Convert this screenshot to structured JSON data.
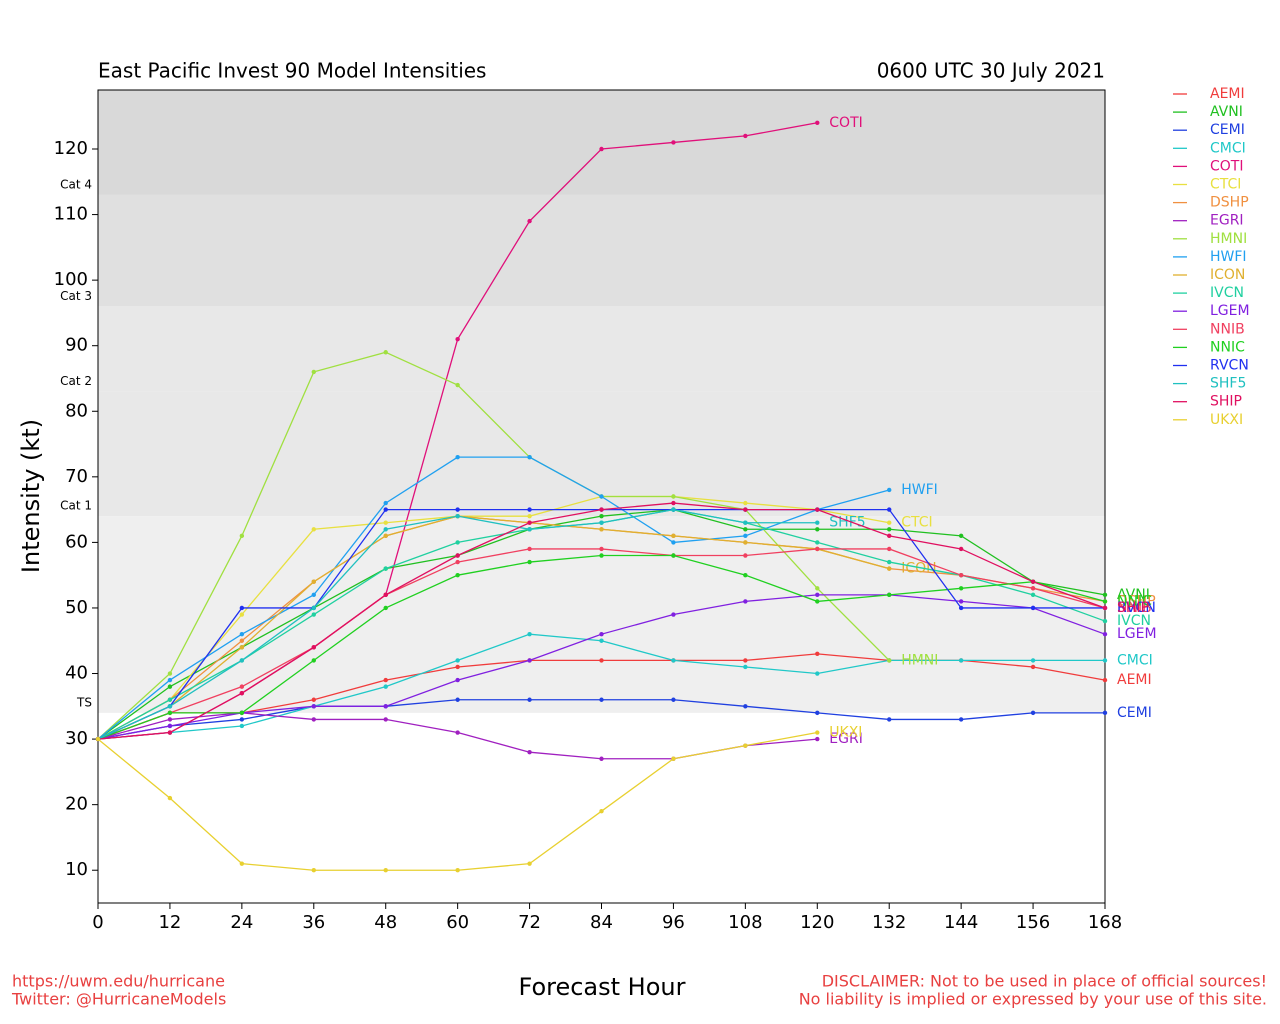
{
  "chart_data": {
    "type": "line",
    "title": "East Pacific Invest 90 Model Intensities",
    "subtitle": "0600 UTC 30 July 2021",
    "x_label": "Forecast Hour",
    "y_label": "Intensity (kt)",
    "footer_left": [
      "https://uwm.edu/hurricane",
      "Twitter: @HurricaneModels"
    ],
    "footer_right": [
      "DISCLAIMER: Not to be used in place of official sources!",
      "No liability is implied or expressed by your use of this site."
    ],
    "xlim": [
      0,
      168
    ],
    "ylim": [
      5,
      129
    ],
    "xticks": [
      0,
      12,
      24,
      36,
      48,
      60,
      72,
      84,
      96,
      108,
      120,
      132,
      144,
      156,
      168
    ],
    "yticks": [
      10,
      20,
      30,
      40,
      50,
      60,
      70,
      80,
      90,
      100,
      110,
      120
    ],
    "intensity_bands": [
      {
        "value": 34,
        "label": "TS",
        "color": "#efefef"
      },
      {
        "value": 64,
        "label": "Cat 1",
        "color": "#e8e8e8"
      },
      {
        "value": 83,
        "label": "Cat 2",
        "color": "#e8e8e8"
      },
      {
        "value": 96,
        "label": "Cat 3",
        "color": "#e0e0e0"
      },
      {
        "value": 113,
        "label": "Cat 4",
        "color": "#d9d9d9"
      }
    ],
    "x": [
      0,
      12,
      24,
      36,
      48,
      60,
      72,
      84,
      96,
      108,
      120,
      132,
      144,
      156,
      168
    ],
    "series": [
      {
        "name": "AEMI",
        "color": "#f03c3c",
        "values": [
          30,
          34,
          34,
          36,
          39,
          41,
          42,
          42,
          42,
          42,
          43,
          42,
          42,
          41,
          39
        ]
      },
      {
        "name": "AVNI",
        "color": "#20c020",
        "values": [
          30,
          38,
          44,
          50,
          56,
          58,
          62,
          64,
          65,
          62,
          62,
          62,
          61,
          54,
          52
        ]
      },
      {
        "name": "CEMI",
        "color": "#2040e0",
        "values": [
          30,
          32,
          33,
          35,
          35,
          36,
          36,
          36,
          36,
          35,
          34,
          33,
          33,
          34,
          34
        ]
      },
      {
        "name": "CMCI",
        "color": "#20c8c8",
        "values": [
          30,
          31,
          32,
          35,
          38,
          42,
          46,
          45,
          42,
          41,
          40,
          42,
          42,
          42,
          42
        ]
      },
      {
        "name": "COTI",
        "color": "#e0107a",
        "values": [
          30,
          31,
          37,
          44,
          52,
          91,
          109,
          120,
          121,
          122,
          124,
          null,
          null,
          null,
          null
        ]
      },
      {
        "name": "CTCI",
        "color": "#e8e040",
        "values": [
          30,
          36,
          49,
          62,
          63,
          64,
          64,
          67,
          67,
          66,
          65,
          63,
          null,
          null,
          null
        ]
      },
      {
        "name": "DSHP",
        "color": "#f09040",
        "values": [
          30,
          36,
          45,
          54,
          61,
          64,
          63,
          62,
          61,
          60,
          59,
          56,
          55,
          53,
          51
        ]
      },
      {
        "name": "EGRI",
        "color": "#a020c0",
        "values": [
          30,
          33,
          34,
          33,
          33,
          31,
          28,
          27,
          27,
          29,
          30,
          null,
          null,
          null,
          null
        ]
      },
      {
        "name": "HMNI",
        "color": "#a0e040",
        "values": [
          30,
          40,
          61,
          86,
          89,
          84,
          73,
          67,
          67,
          65,
          53,
          42,
          null,
          null,
          null
        ]
      },
      {
        "name": "HWFI",
        "color": "#20a0f0",
        "values": [
          30,
          39,
          46,
          52,
          66,
          73,
          73,
          67,
          60,
          61,
          65,
          68,
          null,
          null,
          null
        ]
      },
      {
        "name": "ICON",
        "color": "#e0b030",
        "values": [
          30,
          35,
          44,
          54,
          61,
          64,
          63,
          62,
          61,
          60,
          59,
          56,
          null,
          null,
          null
        ]
      },
      {
        "name": "IVCN",
        "color": "#20d0a0",
        "values": [
          30,
          36,
          42,
          49,
          56,
          60,
          62,
          63,
          65,
          63,
          60,
          57,
          55,
          52,
          48
        ]
      },
      {
        "name": "LGEM",
        "color": "#8020e0",
        "values": [
          30,
          32,
          34,
          35,
          35,
          39,
          42,
          46,
          49,
          51,
          52,
          52,
          51,
          50,
          46
        ]
      },
      {
        "name": "NNIB",
        "color": "#f04060",
        "values": [
          30,
          34,
          38,
          44,
          52,
          57,
          59,
          59,
          58,
          58,
          59,
          59,
          55,
          53,
          50
        ]
      },
      {
        "name": "NNIC",
        "color": "#20d020",
        "values": [
          30,
          34,
          34,
          42,
          50,
          55,
          57,
          58,
          58,
          55,
          51,
          52,
          53,
          54,
          51
        ]
      },
      {
        "name": "RVCN",
        "color": "#2030f0",
        "values": [
          30,
          35,
          50,
          50,
          65,
          65,
          65,
          65,
          65,
          65,
          65,
          65,
          50,
          50,
          50
        ]
      },
      {
        "name": "SHF5",
        "color": "#20c0c0",
        "values": [
          30,
          35,
          42,
          50,
          62,
          64,
          62,
          63,
          65,
          63,
          63,
          null,
          null,
          null,
          null
        ]
      },
      {
        "name": "SHIP",
        "color": "#e01060",
        "values": [
          30,
          31,
          37,
          44,
          52,
          58,
          63,
          65,
          66,
          65,
          65,
          61,
          59,
          54,
          50
        ]
      },
      {
        "name": "UKXI",
        "color": "#e8d030",
        "values": [
          30,
          21,
          11,
          10,
          10,
          10,
          11,
          19,
          27,
          29,
          31,
          null,
          null,
          null,
          null
        ]
      }
    ]
  }
}
